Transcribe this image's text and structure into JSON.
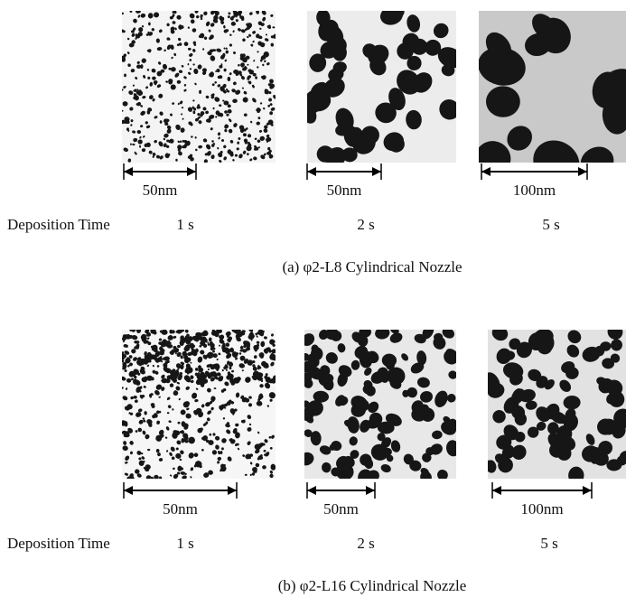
{
  "panels": [
    {
      "images": [
        {
          "scale_label": "50nm",
          "time": "1 s"
        },
        {
          "scale_label": "50nm",
          "time": "2 s"
        },
        {
          "scale_label": "100nm",
          "time": "5 s"
        }
      ],
      "time_label": "Deposition Time",
      "caption": "(a) φ2-L8 Cylindrical Nozzle"
    },
    {
      "images": [
        {
          "scale_label": "50nm",
          "time": "1 s"
        },
        {
          "scale_label": "50nm",
          "time": "2 s"
        },
        {
          "scale_label": "100nm",
          "time": "5 s"
        }
      ],
      "time_label": "Deposition Time",
      "caption": "(b) φ2-L16 Cylindrical Nozzle"
    }
  ]
}
